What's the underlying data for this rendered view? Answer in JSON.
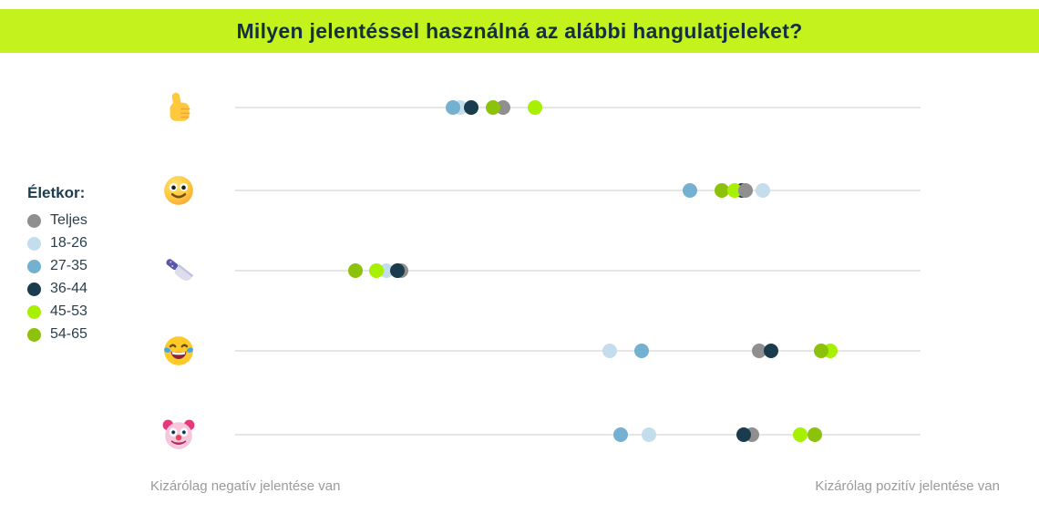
{
  "title": "Milyen jelentéssel használná az alábbi hangulatjeleket?",
  "banner_color": "#c4f21c",
  "chart_data": {
    "type": "scatter",
    "title": "Milyen jelentéssel használná az alábbi hangulatjeleket?",
    "x_axis": {
      "left_label": "Kizárólag negatív jelentése van",
      "right_label": "Kizárólag pozitív jelentése van",
      "min": 0,
      "max": 100,
      "grid": false
    },
    "legend": {
      "title": "Életkor:",
      "position": "left",
      "groups": [
        {
          "name": "Teljes",
          "color": "#8f8f8f"
        },
        {
          "name": "18-26",
          "color": "#c4ddec"
        },
        {
          "name": "27-35",
          "color": "#74b0d0"
        },
        {
          "name": "36-44",
          "color": "#1b3c4e"
        },
        {
          "name": "45-53",
          "color": "#a6f000"
        },
        {
          "name": "54-65",
          "color": "#8cc10c"
        }
      ]
    },
    "rows": [
      {
        "emoji": "thumbs-up",
        "points": [
          {
            "group": "18-26",
            "x_pct": 32.8
          },
          {
            "group": "27-35",
            "x_pct": 31.8
          },
          {
            "group": "36-44",
            "x_pct": 34.4
          },
          {
            "group": "Teljes",
            "x_pct": 39.1
          },
          {
            "group": "54-65",
            "x_pct": 37.6
          },
          {
            "group": "45-53",
            "x_pct": 43.8
          }
        ]
      },
      {
        "emoji": "slightly-smiling-face",
        "points": [
          {
            "group": "36-44",
            "x_pct": 73.9
          },
          {
            "group": "27-35",
            "x_pct": 66.4
          },
          {
            "group": "54-65",
            "x_pct": 71.0
          },
          {
            "group": "45-53",
            "x_pct": 72.9
          },
          {
            "group": "Teljes",
            "x_pct": 74.5
          },
          {
            "group": "18-26",
            "x_pct": 77.0
          }
        ]
      },
      {
        "emoji": "kitchen-knife",
        "points": [
          {
            "group": "27-35",
            "x_pct": 23.8
          },
          {
            "group": "Teljes",
            "x_pct": 24.2
          },
          {
            "group": "18-26",
            "x_pct": 22.1
          },
          {
            "group": "45-53",
            "x_pct": 20.6
          },
          {
            "group": "36-44",
            "x_pct": 23.7
          },
          {
            "group": "54-65",
            "x_pct": 17.6
          }
        ]
      },
      {
        "emoji": "face-with-tears-of-joy",
        "points": [
          {
            "group": "Teljes",
            "x_pct": 76.5
          },
          {
            "group": "36-44",
            "x_pct": 78.2
          },
          {
            "group": "18-26",
            "x_pct": 54.7
          },
          {
            "group": "27-35",
            "x_pct": 59.3
          },
          {
            "group": "45-53",
            "x_pct": 86.8
          },
          {
            "group": "54-65",
            "x_pct": 85.5
          }
        ]
      },
      {
        "emoji": "clown-face",
        "points": [
          {
            "group": "Teljes",
            "x_pct": 75.4
          },
          {
            "group": "36-44",
            "x_pct": 74.2
          },
          {
            "group": "27-35",
            "x_pct": 56.2
          },
          {
            "group": "18-26",
            "x_pct": 60.4
          },
          {
            "group": "45-53",
            "x_pct": 82.4
          },
          {
            "group": "54-65",
            "x_pct": 84.6
          }
        ]
      }
    ]
  }
}
